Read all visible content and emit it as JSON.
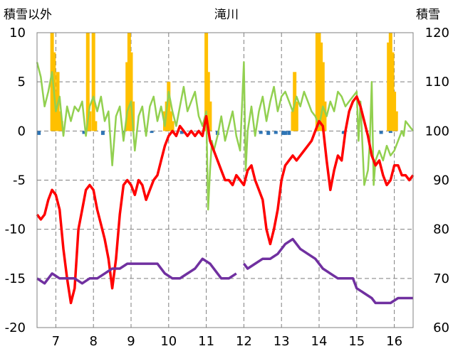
{
  "chart_data": {
    "type": "line",
    "title": "滝川",
    "ylabel_left": "積雪以外",
    "ylabel_right": "積雪",
    "x_ticks": [
      7,
      8,
      9,
      10,
      11,
      12,
      13,
      14,
      15,
      16
    ],
    "xlim": [
      6.5,
      16.5
    ],
    "ylim_left": [
      -20,
      10
    ],
    "ylim_right": [
      60,
      120
    ],
    "y_ticks_left": [
      10,
      5,
      0,
      -5,
      -10,
      -15,
      -20
    ],
    "y_tick_labels_left": [
      "10",
      "5",
      "0",
      "-5",
      "-10",
      "-15",
      "-20"
    ],
    "y_ticks_right": [
      120,
      110,
      100,
      90,
      80,
      70,
      60
    ],
    "grid": true,
    "series": [
      {
        "axis": "left",
        "render": "bar",
        "color": "#FFC000",
        "points": [
          [
            6.9,
            10
          ],
          [
            6.95,
            8
          ],
          [
            7.0,
            4
          ],
          [
            7.05,
            6
          ],
          [
            7.1,
            2
          ],
          [
            7.15,
            1
          ],
          [
            7.85,
            10
          ],
          [
            7.9,
            2
          ],
          [
            8.0,
            10
          ],
          [
            8.05,
            1
          ],
          [
            8.9,
            7
          ],
          [
            8.95,
            10
          ],
          [
            9.0,
            8
          ],
          [
            9.05,
            3
          ],
          [
            9.9,
            2
          ],
          [
            9.95,
            3
          ],
          [
            10.0,
            5
          ],
          [
            10.05,
            2
          ],
          [
            10.1,
            1
          ],
          [
            11.0,
            10
          ],
          [
            11.05,
            6
          ],
          [
            11.1,
            3
          ],
          [
            13.3,
            2
          ],
          [
            13.35,
            6
          ],
          [
            13.4,
            3
          ],
          [
            13.95,
            10
          ],
          [
            14.0,
            10
          ],
          [
            14.05,
            9
          ],
          [
            14.1,
            7
          ],
          [
            14.15,
            3
          ],
          [
            15.85,
            9
          ],
          [
            15.9,
            10
          ],
          [
            15.95,
            8
          ],
          [
            16.0,
            4
          ],
          [
            16.05,
            2
          ]
        ]
      },
      {
        "axis": "left",
        "render": "bar",
        "color": "#2E75B6",
        "points": [
          [
            6.55,
            -0.4
          ],
          [
            7.75,
            -0.3
          ],
          [
            8.25,
            -0.4
          ],
          [
            8.8,
            -0.3
          ],
          [
            9.55,
            -0.2
          ],
          [
            10.35,
            -0.3
          ],
          [
            11.3,
            -0.4
          ],
          [
            12.45,
            -0.3
          ],
          [
            12.65,
            -0.4
          ],
          [
            12.85,
            -0.3
          ],
          [
            13.05,
            -0.4
          ],
          [
            13.1,
            -0.4
          ],
          [
            13.2,
            -0.4
          ],
          [
            14.65,
            -0.3
          ],
          [
            15.65,
            -0.3
          ],
          [
            15.9,
            -0.2
          ]
        ]
      },
      {
        "axis": "left",
        "render": "line",
        "color": "#92D050",
        "points": [
          [
            6.5,
            7
          ],
          [
            6.6,
            5.5
          ],
          [
            6.7,
            2.5
          ],
          [
            6.8,
            4
          ],
          [
            6.9,
            6
          ],
          [
            7.0,
            2
          ],
          [
            7.1,
            3.5
          ],
          [
            7.2,
            -0.5
          ],
          [
            7.3,
            2.5
          ],
          [
            7.4,
            1
          ],
          [
            7.5,
            2.5
          ],
          [
            7.6,
            2
          ],
          [
            7.7,
            3
          ],
          [
            7.8,
            -0.5
          ],
          [
            7.9,
            2.5
          ],
          [
            8.0,
            3.5
          ],
          [
            8.1,
            2
          ],
          [
            8.2,
            3.5
          ],
          [
            8.3,
            1
          ],
          [
            8.4,
            2
          ],
          [
            8.5,
            -3.5
          ],
          [
            8.6,
            1.5
          ],
          [
            8.7,
            2.5
          ],
          [
            8.8,
            -1
          ],
          [
            8.9,
            2
          ],
          [
            9.0,
            3
          ],
          [
            9.1,
            -2
          ],
          [
            9.2,
            1.5
          ],
          [
            9.3,
            2.5
          ],
          [
            9.4,
            -0.5
          ],
          [
            9.5,
            2.5
          ],
          [
            9.6,
            3.5
          ],
          [
            9.7,
            1
          ],
          [
            9.8,
            2.5
          ],
          [
            9.9,
            0.5
          ],
          [
            10.0,
            4
          ],
          [
            10.1,
            2
          ],
          [
            10.2,
            0.5
          ],
          [
            10.3,
            2.5
          ],
          [
            10.4,
            4.5
          ],
          [
            10.5,
            2
          ],
          [
            10.6,
            3
          ],
          [
            10.7,
            4
          ],
          [
            10.8,
            1.5
          ],
          [
            10.9,
            0.5
          ],
          [
            11.0,
            2
          ],
          [
            11.05,
            -8
          ],
          [
            11.1,
            -4
          ],
          [
            11.15,
            -1
          ],
          [
            11.2,
            -2
          ],
          [
            11.3,
            -0.5
          ],
          [
            11.4,
            1.5
          ],
          [
            11.5,
            -1
          ],
          [
            11.6,
            0.5
          ],
          [
            11.7,
            2
          ],
          [
            11.8,
            -0.5
          ],
          [
            11.9,
            -2
          ],
          [
            12.0,
            7
          ],
          [
            12.05,
            -4
          ],
          [
            12.1,
            0
          ],
          [
            12.2,
            2.5
          ],
          [
            12.3,
            -0.5
          ],
          [
            12.4,
            2
          ],
          [
            12.5,
            3.5
          ],
          [
            12.6,
            1
          ],
          [
            12.7,
            3
          ],
          [
            12.8,
            4.5
          ],
          [
            12.9,
            2
          ],
          [
            13.0,
            3.5
          ],
          [
            13.1,
            4
          ],
          [
            13.2,
            3
          ],
          [
            13.3,
            2
          ],
          [
            13.4,
            3.5
          ],
          [
            13.5,
            2.5
          ],
          [
            13.6,
            4
          ],
          [
            13.7,
            3
          ],
          [
            13.8,
            2
          ],
          [
            13.9,
            1.5
          ],
          [
            14.0,
            0.5
          ],
          [
            14.1,
            2.5
          ],
          [
            14.2,
            1.5
          ],
          [
            14.3,
            3
          ],
          [
            14.4,
            2
          ],
          [
            14.5,
            4
          ],
          [
            14.6,
            3.5
          ],
          [
            14.7,
            2.5
          ],
          [
            14.8,
            3
          ],
          [
            14.9,
            3.5
          ],
          [
            15.0,
            4
          ],
          [
            15.05,
            -1
          ],
          [
            15.1,
            3
          ],
          [
            15.2,
            -5.5
          ],
          [
            15.3,
            -4
          ],
          [
            15.35,
            -1
          ],
          [
            15.4,
            5
          ],
          [
            15.45,
            -5.5
          ],
          [
            15.5,
            -3
          ],
          [
            15.6,
            -2
          ],
          [
            15.7,
            -3
          ],
          [
            15.8,
            -1.5
          ],
          [
            15.9,
            -2.5
          ],
          [
            16.0,
            -2
          ],
          [
            16.1,
            -1
          ],
          [
            16.2,
            0
          ],
          [
            16.25,
            -0.5
          ],
          [
            16.3,
            1
          ],
          [
            16.4,
            0.5
          ],
          [
            16.5,
            0
          ]
        ]
      },
      {
        "axis": "left",
        "render": "line",
        "color": "#FF0000",
        "points": [
          [
            6.5,
            -8.5
          ],
          [
            6.6,
            -9
          ],
          [
            6.7,
            -8.5
          ],
          [
            6.8,
            -7
          ],
          [
            6.9,
            -6
          ],
          [
            7.0,
            -6.5
          ],
          [
            7.1,
            -8
          ],
          [
            7.2,
            -12
          ],
          [
            7.3,
            -15
          ],
          [
            7.4,
            -17.5
          ],
          [
            7.5,
            -16
          ],
          [
            7.6,
            -10
          ],
          [
            7.7,
            -8
          ],
          [
            7.8,
            -6
          ],
          [
            7.9,
            -5.5
          ],
          [
            8.0,
            -6
          ],
          [
            8.1,
            -8
          ],
          [
            8.2,
            -9.5
          ],
          [
            8.3,
            -11
          ],
          [
            8.4,
            -13
          ],
          [
            8.5,
            -16
          ],
          [
            8.6,
            -13
          ],
          [
            8.7,
            -8.5
          ],
          [
            8.8,
            -5.5
          ],
          [
            8.9,
            -5
          ],
          [
            9.0,
            -5.5
          ],
          [
            9.1,
            -6.5
          ],
          [
            9.2,
            -5
          ],
          [
            9.3,
            -5.5
          ],
          [
            9.4,
            -7
          ],
          [
            9.5,
            -6
          ],
          [
            9.6,
            -5
          ],
          [
            9.7,
            -4.5
          ],
          [
            9.8,
            -3
          ],
          [
            9.9,
            -1.5
          ],
          [
            10.0,
            -0.5
          ],
          [
            10.1,
            0
          ],
          [
            10.2,
            -0.5
          ],
          [
            10.3,
            0.5
          ],
          [
            10.4,
            0
          ],
          [
            10.5,
            -0.5
          ],
          [
            10.6,
            0
          ],
          [
            10.7,
            -0.5
          ],
          [
            10.8,
            0
          ],
          [
            10.9,
            -0.5
          ],
          [
            11.0,
            1.5
          ],
          [
            11.1,
            -1
          ],
          [
            11.2,
            -2
          ],
          [
            11.3,
            -3
          ],
          [
            11.4,
            -4
          ],
          [
            11.5,
            -5
          ],
          [
            11.6,
            -5
          ],
          [
            11.7,
            -5.5
          ],
          [
            11.8,
            -4.5
          ],
          [
            11.9,
            -5
          ],
          [
            12.0,
            -5.5
          ],
          [
            12.1,
            -4
          ],
          [
            12.2,
            -3.5
          ],
          [
            12.3,
            -5
          ],
          [
            12.4,
            -6
          ],
          [
            12.5,
            -7
          ],
          [
            12.6,
            -10
          ],
          [
            12.7,
            -11.5
          ],
          [
            12.8,
            -10
          ],
          [
            12.9,
            -8
          ],
          [
            13.0,
            -5
          ],
          [
            13.1,
            -3.5
          ],
          [
            13.2,
            -3
          ],
          [
            13.3,
            -2.5
          ],
          [
            13.4,
            -3
          ],
          [
            13.5,
            -2.5
          ],
          [
            13.6,
            -2
          ],
          [
            13.7,
            -1.5
          ],
          [
            13.8,
            -1
          ],
          [
            13.9,
            0
          ],
          [
            14.0,
            1
          ],
          [
            14.1,
            0.5
          ],
          [
            14.2,
            -3
          ],
          [
            14.3,
            -6
          ],
          [
            14.4,
            -4
          ],
          [
            14.5,
            -2.5
          ],
          [
            14.6,
            -3
          ],
          [
            14.7,
            0
          ],
          [
            14.8,
            2
          ],
          [
            14.9,
            3
          ],
          [
            15.0,
            3.5
          ],
          [
            15.1,
            2.5
          ],
          [
            15.2,
            1
          ],
          [
            15.3,
            -0.5
          ],
          [
            15.4,
            -2.5
          ],
          [
            15.5,
            -3.5
          ],
          [
            15.6,
            -3
          ],
          [
            15.7,
            -4.5
          ],
          [
            15.8,
            -5.5
          ],
          [
            15.9,
            -5
          ],
          [
            16.0,
            -3.5
          ],
          [
            16.1,
            -3.5
          ],
          [
            16.2,
            -4.5
          ],
          [
            16.3,
            -4.5
          ],
          [
            16.4,
            -5
          ],
          [
            16.5,
            -4.5
          ]
        ]
      },
      {
        "axis": "right",
        "render": "line",
        "color": "#7030A0",
        "points": [
          [
            6.5,
            70
          ],
          [
            6.7,
            69
          ],
          [
            6.9,
            71
          ],
          [
            7.1,
            70
          ],
          [
            7.5,
            70
          ],
          [
            7.7,
            69
          ],
          [
            7.9,
            70
          ],
          [
            8.1,
            70
          ],
          [
            8.3,
            71
          ],
          [
            8.5,
            72
          ],
          [
            8.7,
            72
          ],
          [
            8.9,
            73
          ],
          [
            9.1,
            73
          ],
          [
            9.3,
            73
          ],
          [
            9.5,
            73
          ],
          [
            9.7,
            73
          ],
          [
            9.9,
            71
          ],
          [
            10.1,
            70
          ],
          [
            10.3,
            70
          ],
          [
            10.5,
            71
          ],
          [
            10.7,
            72
          ],
          [
            10.9,
            74
          ],
          [
            11.1,
            73
          ],
          [
            11.3,
            71
          ],
          [
            11.4,
            70
          ],
          [
            11.6,
            70
          ],
          [
            11.8,
            71
          ],
          [
            11.85,
            null
          ],
          [
            11.95,
            null
          ],
          [
            12.0,
            73
          ],
          [
            12.1,
            72
          ],
          [
            12.3,
            73
          ],
          [
            12.5,
            74
          ],
          [
            12.7,
            74
          ],
          [
            12.9,
            75
          ],
          [
            13.1,
            77
          ],
          [
            13.3,
            78
          ],
          [
            13.5,
            76
          ],
          [
            13.7,
            75
          ],
          [
            13.9,
            74
          ],
          [
            14.1,
            72
          ],
          [
            14.3,
            71
          ],
          [
            14.5,
            70
          ],
          [
            14.7,
            70
          ],
          [
            14.9,
            70
          ],
          [
            15.0,
            68
          ],
          [
            15.2,
            67
          ],
          [
            15.4,
            66
          ],
          [
            15.5,
            65
          ],
          [
            15.7,
            65
          ],
          [
            15.9,
            65
          ],
          [
            16.1,
            66
          ],
          [
            16.3,
            66
          ],
          [
            16.5,
            66
          ]
        ]
      }
    ]
  }
}
